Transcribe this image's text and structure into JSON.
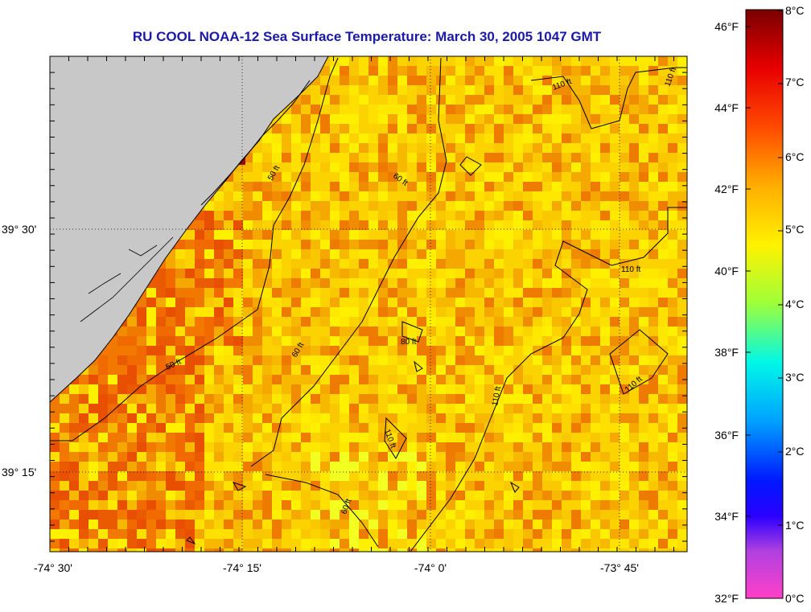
{
  "title": "RU COOL  NOAA-12  Sea Surface Temperature:  March 30, 2005 1047 GMT",
  "x_axis": {
    "ticks": [
      "-74° 30'",
      "-74° 15'",
      "-74° 0'",
      "-73° 45'"
    ]
  },
  "y_axis": {
    "ticks": [
      "39° 30'",
      "39° 15'"
    ]
  },
  "contour_labels": [
    "50 ft",
    "50 ft",
    "60 ft",
    "60 ft",
    "80 ft",
    "60 ft",
    "110 ft",
    "110 ft",
    "110 ft",
    "110 ft",
    "110 ft",
    "110 ft"
  ],
  "colorbar": {
    "fahrenheit": [
      "46°F",
      "44°F",
      "42°F",
      "40°F",
      "38°F",
      "36°F",
      "34°F",
      "32°F"
    ],
    "celsius": [
      "8°C",
      "7°C",
      "6°C",
      "5°C",
      "4°C",
      "3°C",
      "2°C",
      "1°C",
      "0°C"
    ],
    "gradient": [
      "#8b0000",
      "#ff2a00",
      "#ff8a00",
      "#ffd800",
      "#f4ff00",
      "#7fff55",
      "#00ffff",
      "#0070ff",
      "#0000ff",
      "#a020f0",
      "#ff40c0"
    ]
  },
  "colors": {
    "land": "#c8c8c8",
    "title": "#1a1aa6",
    "water_base": "#f6b800"
  }
}
